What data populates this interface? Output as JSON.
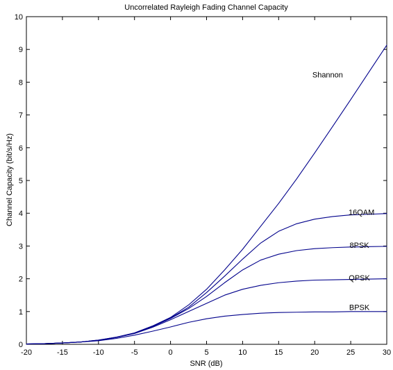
{
  "chart_data": {
    "type": "line",
    "title": "Uncorrelated Rayleigh Fading Channel Capacity",
    "xlabel": "SNR (dB)",
    "ylabel": "Channel Capacity (bit/s/Hz)",
    "xlim": [
      -20,
      30
    ],
    "ylim": [
      0,
      10
    ],
    "x_ticks": [
      -20,
      -15,
      -10,
      -5,
      0,
      5,
      10,
      15,
      20,
      25,
      30
    ],
    "y_ticks": [
      0,
      1,
      2,
      3,
      4,
      5,
      6,
      7,
      8,
      9,
      10
    ],
    "grid": false,
    "legend": "none",
    "line_color": "#00008b",
    "x": [
      -20,
      -17.5,
      -15,
      -12.5,
      -10,
      -7.5,
      -5,
      -2.5,
      0,
      2.5,
      5,
      7.5,
      10,
      12.5,
      15,
      17.5,
      20,
      22.5,
      25,
      27.5,
      30
    ],
    "series": [
      {
        "name": "Shannon",
        "values": [
          0.01,
          0.02,
          0.04,
          0.07,
          0.13,
          0.22,
          0.35,
          0.56,
          0.82,
          1.2,
          1.68,
          2.27,
          2.9,
          3.6,
          4.3,
          5.05,
          5.84,
          6.65,
          7.47,
          8.3,
          9.13
        ]
      },
      {
        "name": "16QAM",
        "values": [
          0.01,
          0.02,
          0.04,
          0.07,
          0.13,
          0.22,
          0.34,
          0.55,
          0.8,
          1.13,
          1.58,
          2.08,
          2.6,
          3.09,
          3.45,
          3.68,
          3.82,
          3.9,
          3.95,
          3.97,
          3.99
        ]
      },
      {
        "name": "8PSK",
        "values": [
          0.01,
          0.02,
          0.04,
          0.07,
          0.12,
          0.21,
          0.34,
          0.54,
          0.79,
          1.09,
          1.46,
          1.88,
          2.27,
          2.57,
          2.75,
          2.86,
          2.92,
          2.95,
          2.97,
          2.98,
          2.99
        ]
      },
      {
        "name": "QPSK",
        "values": [
          0.01,
          0.02,
          0.04,
          0.07,
          0.12,
          0.21,
          0.33,
          0.52,
          0.75,
          1.0,
          1.25,
          1.5,
          1.68,
          1.8,
          1.88,
          1.93,
          1.96,
          1.97,
          1.98,
          1.99,
          2.0
        ]
      },
      {
        "name": "BPSK",
        "values": [
          0.01,
          0.02,
          0.04,
          0.07,
          0.11,
          0.18,
          0.28,
          0.4,
          0.53,
          0.67,
          0.78,
          0.86,
          0.91,
          0.95,
          0.97,
          0.98,
          0.99,
          0.99,
          1.0,
          1.0,
          1.0
        ]
      }
    ],
    "series_labels": [
      {
        "text": "Shannon",
        "x": 21.8,
        "y": 8.15
      },
      {
        "text": "16QAM",
        "x": 26.5,
        "y": 3.95
      },
      {
        "text": "8PSK",
        "x": 26.2,
        "y": 2.95
      },
      {
        "text": "QPSK",
        "x": 26.2,
        "y": 1.95
      },
      {
        "text": "BPSK",
        "x": 26.2,
        "y": 1.05
      }
    ]
  }
}
